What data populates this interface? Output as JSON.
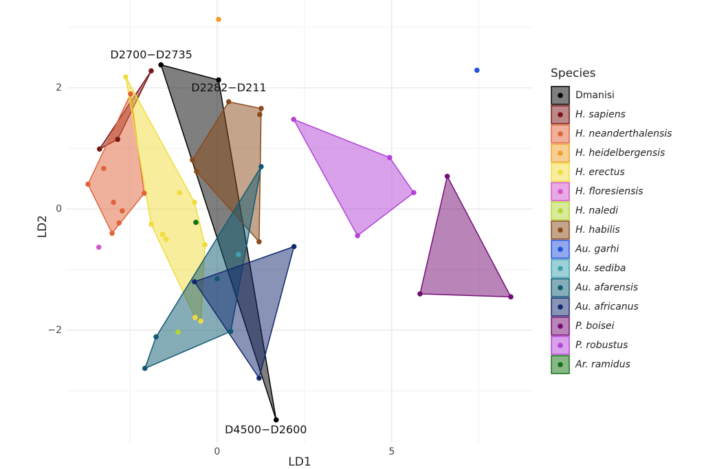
{
  "chart_data": {
    "type": "scatter-hull",
    "x_label": "LD1",
    "y_label": "LD2",
    "legend_title": "Species",
    "xlim": [
      -4.31,
      9.04
    ],
    "ylim": [
      -3.86,
      3.45
    ],
    "xticks": [
      0,
      5
    ],
    "yticks": [
      {
        "value": -2,
        "label": "−2"
      },
      0,
      2
    ],
    "minor_xticks": [
      -2.5,
      2.5,
      7.5
    ],
    "minor_yticks": [
      -3,
      -1,
      1,
      3
    ],
    "grid": true,
    "legend": "right",
    "series": [
      {
        "name": "Dmanisi",
        "color": "#000000",
        "italic": false,
        "x": [
          -1.61,
          0.04,
          1.69
        ],
        "y": [
          2.38,
          2.13,
          -3.48
        ],
        "point_labels": [
          "D2700−D2735",
          "D2282−D211",
          "D4500−D2600"
        ]
      },
      {
        "name": "H. sapiens",
        "color": "#7a1414",
        "italic": true,
        "x": [
          -1.89,
          -2.85,
          -3.37
        ],
        "y": [
          2.28,
          1.15,
          0.99
        ]
      },
      {
        "name": "H. neanderthalensis",
        "color": "#e0643a",
        "italic": true,
        "x": [
          -2.48,
          -3.7,
          -3.01,
          -2.09,
          -3.25,
          -2.97,
          -2.72,
          -2.81
        ],
        "y": [
          1.9,
          0.41,
          -0.4,
          0.26,
          0.67,
          0.11,
          -0.03,
          -0.23
        ]
      },
      {
        "name": "H. heidelbergensis",
        "color": "#f0a028",
        "italic": true,
        "x": [
          0.04
        ],
        "y": [
          3.13
        ]
      },
      {
        "name": "H. erectus",
        "color": "#f0dc3c",
        "italic": true,
        "x": [
          -2.62,
          -0.35,
          -0.47,
          -0.63,
          -1.89,
          -1.08,
          -0.65,
          -1.56,
          -1.46
        ],
        "y": [
          2.18,
          -0.59,
          -1.85,
          -1.79,
          -0.25,
          0.27,
          0.11,
          -0.42,
          -0.5
        ]
      },
      {
        "name": "H. floresiensis",
        "color": "#d456c8",
        "italic": true,
        "x": [
          -3.39
        ],
        "y": [
          -0.63
        ]
      },
      {
        "name": "H. naledi",
        "color": "#b4d632",
        "italic": true,
        "x": [
          -1.12
        ],
        "y": [
          -2.03
        ]
      },
      {
        "name": "H. habilis",
        "color": "#8c4a1a",
        "italic": true,
        "x": [
          0.33,
          1.26,
          1.22,
          1.2,
          -0.71,
          -0.59
        ],
        "y": [
          1.77,
          1.66,
          1.56,
          -0.54,
          0.81,
          0.62
        ]
      },
      {
        "name": "Au. garhi",
        "color": "#2452dc",
        "italic": true,
        "x": [
          7.44
        ],
        "y": [
          2.29
        ]
      },
      {
        "name": "Au. sediba",
        "color": "#3ea2b0",
        "italic": true,
        "x": [
          0.61
        ],
        "y": [
          -0.75
        ]
      },
      {
        "name": "Au. afarensis",
        "color": "#0e5a72",
        "italic": true,
        "x": [
          1.26,
          -2.07,
          -1.75,
          0.39,
          0.0
        ],
        "y": [
          0.7,
          -2.63,
          -2.11,
          -2.02,
          -1.15
        ]
      },
      {
        "name": "Au. africanus",
        "color": "#12286e",
        "italic": true,
        "x": [
          2.2,
          1.2,
          -0.65
        ],
        "y": [
          -0.62,
          -2.79,
          -1.2
        ]
      },
      {
        "name": "P. boisei",
        "color": "#740c74",
        "italic": true,
        "x": [
          6.59,
          5.81,
          8.41
        ],
        "y": [
          0.54,
          -1.4,
          -1.45
        ]
      },
      {
        "name": "P. robustus",
        "color": "#b244d6",
        "italic": true,
        "x": [
          2.19,
          4.94,
          5.63,
          4.02
        ],
        "y": [
          1.48,
          0.85,
          0.27,
          -0.44
        ]
      },
      {
        "name": "Ar. ramidus",
        "color": "#127212",
        "italic": true,
        "x": [
          -0.61
        ],
        "y": [
          -0.22
        ]
      }
    ]
  }
}
